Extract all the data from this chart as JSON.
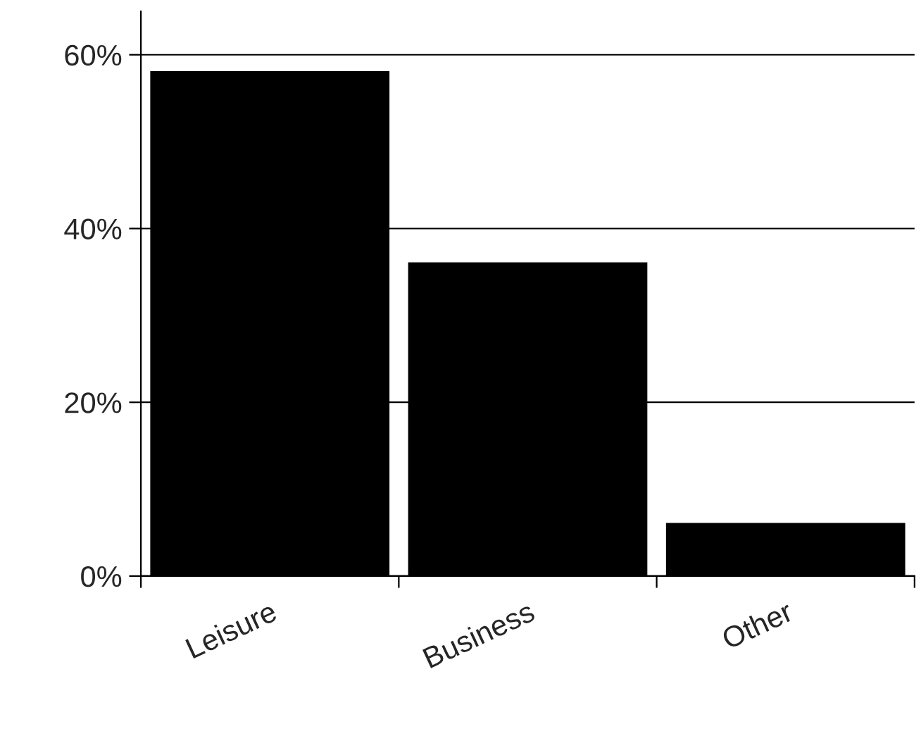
{
  "chart_data": {
    "type": "bar",
    "categories": [
      "Leisure",
      "Business",
      "Other"
    ],
    "values": [
      58,
      36,
      6
    ],
    "color": "#000000",
    "ylim": [
      0,
      65
    ],
    "yticks": [
      {
        "value": 0,
        "label": "0%"
      },
      {
        "value": 20,
        "label": "20%"
      },
      {
        "value": 40,
        "label": "40%"
      },
      {
        "value": 60,
        "label": "60%"
      }
    ],
    "grid": "y"
  }
}
